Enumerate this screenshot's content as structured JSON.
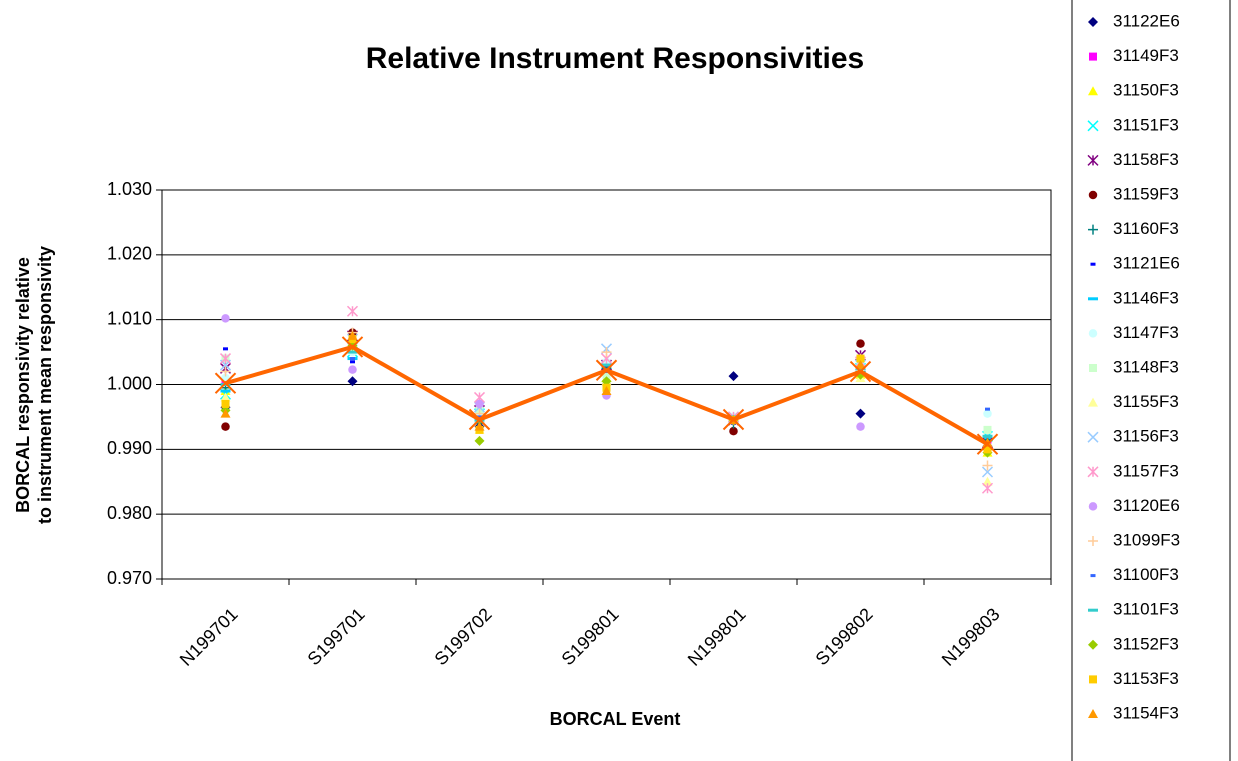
{
  "chart_data": {
    "type": "line",
    "title": "Relative Instrument Responsivities",
    "xlabel": "BORCAL Event",
    "ylabel": [
      "BORCAL responsivity relative",
      "to instrument mean responsivity"
    ],
    "categories": [
      "N199701",
      "S199701",
      "S199702",
      "S199801",
      "N199801",
      "S199802",
      "N199803"
    ],
    "ylim": [
      0.97,
      1.03
    ],
    "yticks": [
      {
        "value": 0.97,
        "label": "0.970"
      },
      {
        "value": 0.98,
        "label": "0.980"
      },
      {
        "value": 0.99,
        "label": "0.990"
      },
      {
        "value": 1.0,
        "label": "1.000"
      },
      {
        "value": 1.01,
        "label": "1.010"
      },
      {
        "value": 1.02,
        "label": "1.020"
      },
      {
        "value": 1.03,
        "label": "1.030"
      }
    ],
    "grid": true,
    "legend": "right",
    "series": [
      {
        "name": "31122E6",
        "color": "#000080",
        "marker": "diamond",
        "values": [
          0.9965,
          1.0005,
          0.9935,
          1.0,
          1.0013,
          0.9955,
          0.9905
        ]
      },
      {
        "name": "31149F3",
        "color": "#ff00ff",
        "marker": "square",
        "values": [
          1.0005,
          1.006,
          0.995,
          1.002,
          0.9945,
          1.0025,
          0.9915
        ]
      },
      {
        "name": "31150F3",
        "color": "#ffff00",
        "marker": "triangle",
        "values": [
          0.999,
          1.0065,
          0.9945,
          1.001,
          0.995,
          1.0015,
          0.9895
        ]
      },
      {
        "name": "31151F3",
        "color": "#00ffff",
        "marker": "x",
        "values": [
          0.9985,
          1.005,
          0.9955,
          1.0025,
          0.995,
          1.0025,
          0.992
        ]
      },
      {
        "name": "31158F3",
        "color": "#800080",
        "marker": "star",
        "values": [
          1.0025,
          1.0075,
          0.996,
          1.003,
          0.9945,
          1.0045,
          0.991
        ]
      },
      {
        "name": "31159F3",
        "color": "#800000",
        "marker": "circle",
        "values": [
          0.9935,
          1.008,
          0.995,
          1.0015,
          0.9928,
          1.0063,
          0.99
        ]
      },
      {
        "name": "31160F3",
        "color": "#008080",
        "marker": "plus",
        "values": [
          0.9995,
          1.0055,
          0.994,
          1.0025,
          0.994,
          1.002,
          0.9915
        ]
      },
      {
        "name": "31121E6",
        "color": "#0000ff",
        "marker": "dash",
        "values": [
          1.0055,
          1.0035,
          0.9945,
          1.002,
          0.994,
          1.003,
          0.993
        ]
      },
      {
        "name": "31146F3",
        "color": "#00ccff",
        "marker": "longdash",
        "values": [
          0.999,
          1.004,
          0.995,
          1.003,
          0.995,
          1.0025,
          0.992
        ]
      },
      {
        "name": "31147F3",
        "color": "#ccffff",
        "marker": "circle",
        "values": [
          1.001,
          1.005,
          0.9955,
          1.0035,
          0.995,
          1.003,
          0.9955
        ]
      },
      {
        "name": "31148F3",
        "color": "#ccffcc",
        "marker": "square",
        "values": [
          1.004,
          1.0055,
          0.996,
          1.0015,
          0.9945,
          1.0025,
          0.993
        ]
      },
      {
        "name": "31155F3",
        "color": "#ffff99",
        "marker": "triangle",
        "values": [
          0.998,
          1.006,
          0.993,
          1.0005,
          0.9945,
          1.001,
          0.985
        ]
      },
      {
        "name": "31156F3",
        "color": "#99ccff",
        "marker": "x",
        "values": [
          1.003,
          1.007,
          0.9965,
          1.0055,
          0.995,
          1.003,
          0.9865
        ]
      },
      {
        "name": "31157F3",
        "color": "#ff99cc",
        "marker": "star",
        "values": [
          1.004,
          1.0113,
          0.998,
          1.004,
          0.995,
          1.0035,
          0.984
        ]
      },
      {
        "name": "31120E6",
        "color": "#cc99ff",
        "marker": "circle",
        "values": [
          1.0102,
          1.0023,
          0.997,
          0.9983,
          0.9945,
          0.9935,
          0.9905
        ]
      },
      {
        "name": "31099F3",
        "color": "#ffcc99",
        "marker": "plus",
        "values": [
          1.002,
          1.008,
          0.9955,
          1.005,
          0.9945,
          1.004,
          0.9875
        ]
      },
      {
        "name": "31100F3",
        "color": "#3366ff",
        "marker": "dash",
        "values": [
          0.997,
          1.004,
          0.995,
          1.002,
          0.9945,
          1.002,
          0.9962
        ]
      },
      {
        "name": "31101F3",
        "color": "#33cccc",
        "marker": "longdash",
        "values": [
          1.0,
          1.005,
          0.9945,
          1.003,
          0.995,
          1.0025,
          0.992
        ]
      },
      {
        "name": "31152F3",
        "color": "#99cc00",
        "marker": "diamond",
        "values": [
          0.996,
          1.006,
          0.9913,
          1.0005,
          0.9945,
          1.0015,
          0.9895
        ]
      },
      {
        "name": "31153F3",
        "color": "#ffcc00",
        "marker": "square",
        "values": [
          0.997,
          1.007,
          0.993,
          0.9995,
          0.9945,
          1.004,
          0.99
        ]
      },
      {
        "name": "31154F3",
        "color": "#ff9900",
        "marker": "triangle",
        "values": [
          0.9955,
          1.0075,
          0.9935,
          0.999,
          0.9945,
          1.003,
          0.991
        ]
      },
      {
        "color": "#ff6600",
        "marker": "bigx",
        "line": true,
        "values": [
          1.0002,
          1.0058,
          0.9946,
          1.0022,
          0.9946,
          1.002,
          0.9908
        ]
      }
    ]
  }
}
